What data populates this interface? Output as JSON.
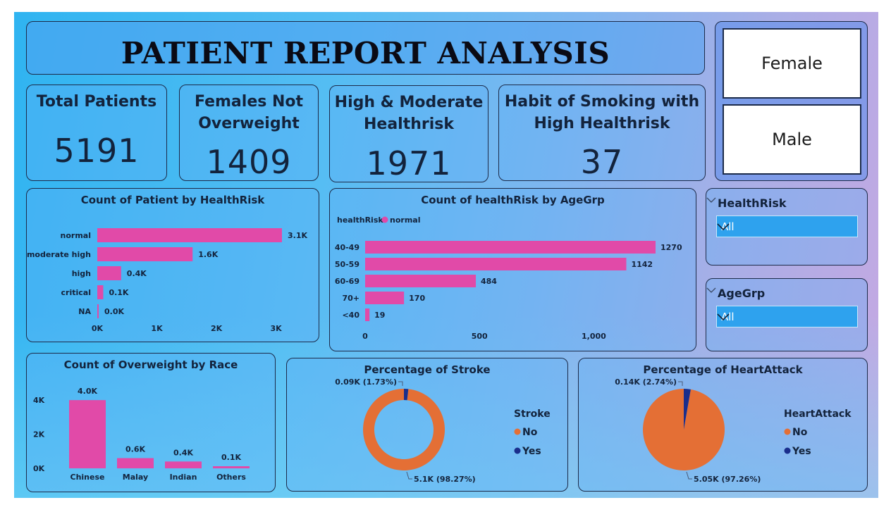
{
  "title": "PATIENT REPORT ANALYSIS",
  "gender_slicer": {
    "options": [
      "Female",
      "Male"
    ]
  },
  "kpis": [
    {
      "title_lines": [
        "Total Patients"
      ],
      "value": "5191"
    },
    {
      "title_lines": [
        "Females Not",
        "Overweight"
      ],
      "value": "1409"
    },
    {
      "title_lines": [
        "High & Moderate",
        "Healthrisk"
      ],
      "value": "1971"
    },
    {
      "title_lines": [
        "Habit of Smoking with",
        "High Healthrisk"
      ],
      "value": "37"
    }
  ],
  "filters": {
    "healthrisk": {
      "label": "HealthRisk",
      "value": "All"
    },
    "agegrp": {
      "label": "AgeGrp",
      "value": "All"
    }
  },
  "colors": {
    "bar": "#e14aa8",
    "no": "#e46f35",
    "yes": "#1a2e8c"
  },
  "chart_data": [
    {
      "type": "bar",
      "orientation": "horizontal",
      "title": "Count of Patient by HealthRisk",
      "categories": [
        "normal",
        "moderate high",
        "high",
        "critical",
        "NA"
      ],
      "values": [
        3100,
        1600,
        400,
        100,
        0
      ],
      "data_labels": [
        "3.1K",
        "1.6K",
        "0.4K",
        "0.1K",
        "0.0K"
      ],
      "xticks": [
        "0K",
        "1K",
        "2K",
        "3K"
      ],
      "xlim": [
        0,
        3100
      ]
    },
    {
      "type": "bar",
      "orientation": "horizontal",
      "title": "Count of healthRisk by AgeGrp",
      "legend": {
        "title": "healthRisk",
        "items": [
          "normal"
        ]
      },
      "categories": [
        "40-49",
        "50-59",
        "60-69",
        "70+",
        "<40"
      ],
      "values": [
        1270,
        1142,
        484,
        170,
        19
      ],
      "data_labels": [
        "1270",
        "1142",
        "484",
        "170",
        "19"
      ],
      "xticks": [
        "0",
        "500",
        "1,000"
      ],
      "xlim": [
        0,
        1270
      ]
    },
    {
      "type": "bar",
      "orientation": "vertical",
      "title": "Count of Overweight by Race",
      "categories": [
        "Chinese",
        "Malay",
        "Indian",
        "Others"
      ],
      "values": [
        4000,
        600,
        400,
        100
      ],
      "data_labels": [
        "4.0K",
        "0.6K",
        "0.4K",
        "0.1K"
      ],
      "yticks": [
        "4K",
        "2K",
        "0K"
      ],
      "ylim": [
        0,
        4500
      ]
    },
    {
      "type": "pie",
      "style": "donut",
      "title": "Percentage of Stroke",
      "legend_title": "Stroke",
      "slices": [
        {
          "name": "No",
          "value": 98.27,
          "label": "5.1K (98.27%)"
        },
        {
          "name": "Yes",
          "value": 1.73,
          "label": "0.09K (1.73%)"
        }
      ]
    },
    {
      "type": "pie",
      "title": "Percentage of HeartAttack",
      "legend_title": "HeartAttack",
      "slices": [
        {
          "name": "No",
          "value": 97.26,
          "label": "5.05K (97.26%)"
        },
        {
          "name": "Yes",
          "value": 2.74,
          "label": "0.14K (2.74%)"
        }
      ]
    }
  ]
}
